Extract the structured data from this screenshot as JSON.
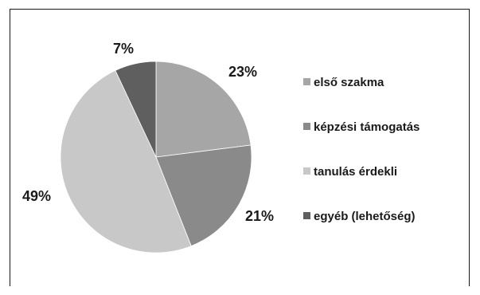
{
  "chart_data": {
    "type": "pie",
    "categories": [
      "első szakma",
      "képzési támogatás",
      "tanulás érdekli",
      "egyéb (lehetőség)"
    ],
    "values": [
      23,
      21,
      49,
      7
    ],
    "value_labels": [
      "23%",
      "21%",
      "49%",
      "7%"
    ],
    "colors": [
      "#a6a6a6",
      "#8a8a8a",
      "#c8c8c8",
      "#5f5f5f"
    ],
    "start_angle": "12 o'clock",
    "direction": "clockwise",
    "legend_position": "right"
  }
}
